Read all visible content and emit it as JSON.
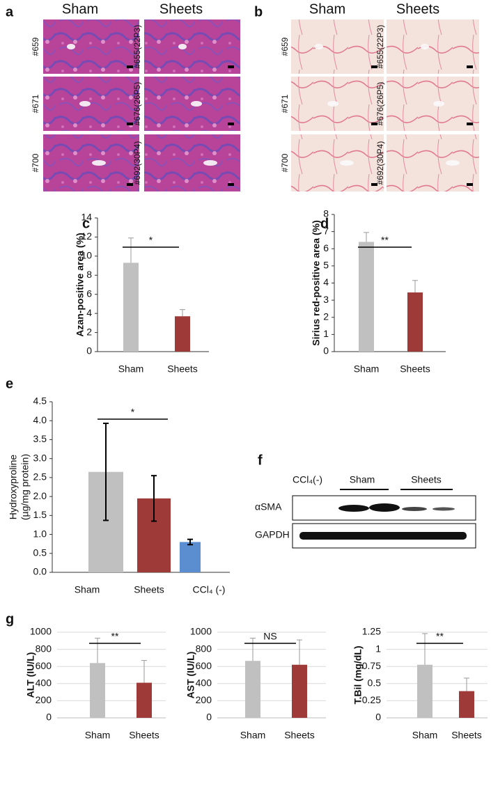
{
  "histology": [
    {
      "label": "a",
      "groups": [
        {
          "name": "Sham",
          "samples": [
            "#659",
            "#671",
            "#700"
          ]
        },
        {
          "name": "Sheets",
          "samples": [
            "#655(22P3)",
            "#676(26P5)",
            "#692(30P4)"
          ]
        }
      ]
    },
    {
      "label": "b",
      "groups": [
        {
          "name": "Sham",
          "samples": [
            "#659",
            "#671",
            "#700"
          ]
        },
        {
          "name": "Sheets",
          "samples": [
            "#655(22P3)",
            "#676(26P5)",
            "#692(30P4)"
          ]
        }
      ]
    }
  ],
  "blot": {
    "label": "f",
    "lanes": [
      "CCl₄(-)",
      "Sham",
      "Sheets"
    ],
    "rows": [
      "αSMA",
      "GAPDH"
    ]
  },
  "chart_data": [
    {
      "type": "bar",
      "panel": "c",
      "ylabel": "Azan-positive area (%)",
      "categories": [
        "Sham",
        "Sheets"
      ],
      "values": [
        9.3,
        3.7
      ],
      "errors": [
        2.6,
        0.7
      ],
      "error_bars": "upper",
      "colors": [
        "#c0c0c0",
        "#9e3a38"
      ],
      "ylim": [
        0,
        14
      ],
      "yticks": [
        0,
        2,
        4,
        6,
        8,
        10,
        12,
        14
      ],
      "grid": false,
      "significance": "*"
    },
    {
      "type": "bar",
      "panel": "d",
      "ylabel": "Sirius red-positive area (%)",
      "categories": [
        "Sham",
        "Sheets"
      ],
      "values": [
        6.4,
        3.45
      ],
      "errors": [
        0.55,
        0.7
      ],
      "error_bars": "upper",
      "colors": [
        "#c0c0c0",
        "#9e3a38"
      ],
      "ylim": [
        0,
        8
      ],
      "yticks": [
        0,
        1,
        2,
        3,
        4,
        5,
        6,
        7,
        8
      ],
      "grid": false,
      "significance": "**"
    },
    {
      "type": "bar",
      "panel": "e",
      "ylabel": [
        "Hydroxyproline",
        "(µg/mg protein)"
      ],
      "categories": [
        "Sham",
        "Sheets",
        "CCl₄  (-)"
      ],
      "values": [
        2.65,
        1.95,
        0.8
      ],
      "errors": [
        1.28,
        0.6,
        0.07
      ],
      "error_bars": "both",
      "colors": [
        "#c0c0c0",
        "#9e3a38",
        "#5a8ed0"
      ],
      "ylim": [
        0,
        4.5
      ],
      "yticks": [
        {
          "value": 0,
          "label": "0.0"
        },
        0.5,
        {
          "value": 1,
          "label": "1.0"
        },
        1.5,
        {
          "value": 2,
          "label": "2.0"
        },
        2.5,
        {
          "value": 3,
          "label": "3.0"
        },
        3.5,
        {
          "value": 4,
          "label": "4.0"
        },
        4.5
      ],
      "grid": false,
      "significance": "*"
    },
    {
      "type": "bar",
      "panel": "g",
      "ylabel": "ALT (IU/L)",
      "categories": [
        "Sham",
        "Sheets"
      ],
      "values": [
        640,
        410
      ],
      "errors": [
        290,
        260
      ],
      "error_bars": "upper",
      "colors": [
        "#c0c0c0",
        "#9e3a38"
      ],
      "ylim": [
        0,
        1000
      ],
      "yticks": [
        0,
        200,
        400,
        600,
        800,
        1000
      ],
      "grid": true,
      "significance": "**"
    },
    {
      "type": "bar",
      "ylabel": "AST (IU/L)",
      "categories": [
        "Sham",
        "Sheets"
      ],
      "values": [
        665,
        620
      ],
      "errors": [
        265,
        290
      ],
      "error_bars": "upper",
      "colors": [
        "#c0c0c0",
        "#9e3a38"
      ],
      "ylim": [
        0,
        1000
      ],
      "yticks": [
        0,
        200,
        400,
        600,
        800,
        1000
      ],
      "grid": true,
      "significance": "NS"
    },
    {
      "type": "bar",
      "ylabel": "T.Bil (mg/dL)",
      "categories": [
        "Sham",
        "Sheets"
      ],
      "values": [
        0.775,
        0.39
      ],
      "errors": [
        0.455,
        0.19
      ],
      "error_bars": "upper",
      "colors": [
        "#c0c0c0",
        "#9e3a38"
      ],
      "ylim": [
        0,
        1.25
      ],
      "yticks": [
        0,
        0.25,
        0.5,
        0.75,
        1,
        1.25
      ],
      "grid": true,
      "significance": "**"
    }
  ]
}
